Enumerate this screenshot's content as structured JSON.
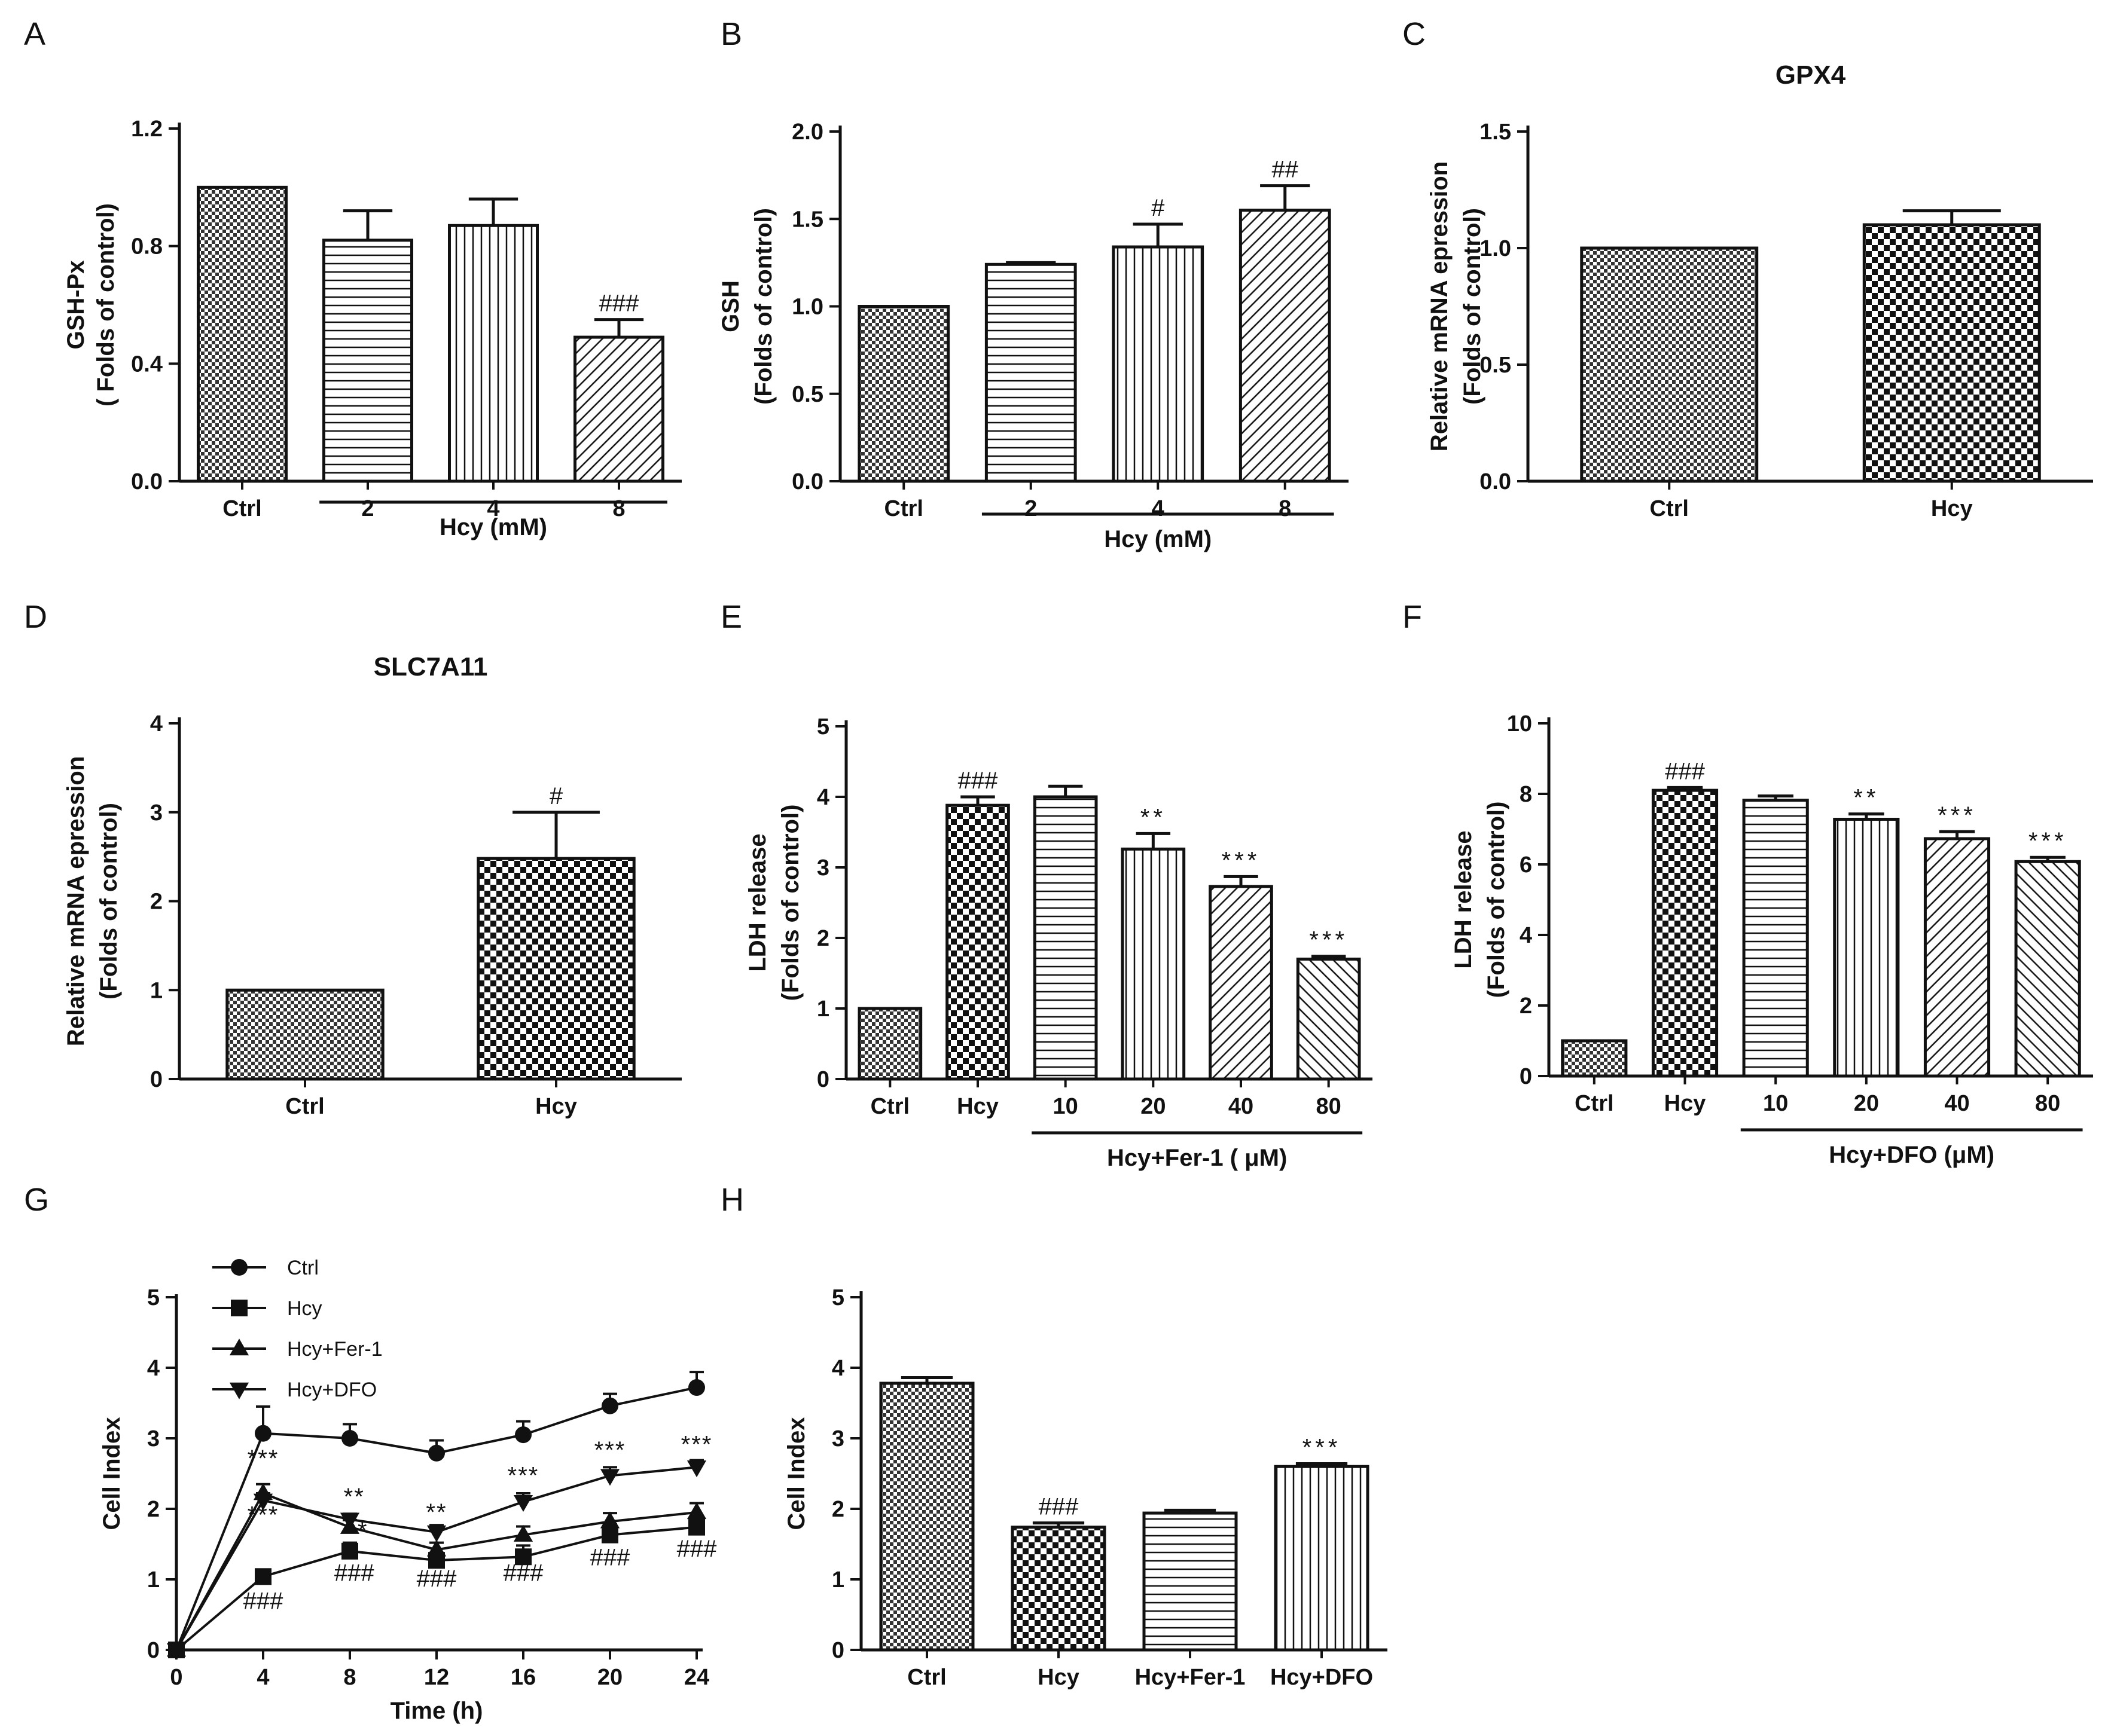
{
  "chart_data": [
    {
      "id": "A",
      "type": "bar",
      "panel_label": "A",
      "title": "",
      "ylabel_lines": [
        "GSH-Px",
        "( Folds of control)"
      ],
      "categories": [
        "Ctrl",
        "2",
        "4",
        "8"
      ],
      "values": [
        1.0,
        0.82,
        0.87,
        0.49
      ],
      "errors": [
        0,
        0.1,
        0.09,
        0.06
      ],
      "annotations": [
        "",
        "",
        "",
        "###"
      ],
      "patterns": [
        "checker",
        "hlines",
        "vlines",
        "diag"
      ],
      "group_label": "Hcy (mM)",
      "group_span": [
        1,
        3
      ],
      "ylim": [
        0,
        1.2
      ],
      "yticks": [
        0.0,
        0.4,
        0.8,
        1.2
      ],
      "ytick_labels": [
        "0.0",
        "0.4",
        "0.8",
        "1.2"
      ]
    },
    {
      "id": "B",
      "type": "bar",
      "panel_label": "B",
      "title": "",
      "ylabel_lines": [
        "GSH",
        "(Folds of control)"
      ],
      "categories": [
        "Ctrl",
        "2",
        "4",
        "8"
      ],
      "values": [
        1.0,
        1.24,
        1.34,
        1.55
      ],
      "errors": [
        0,
        0.01,
        0.13,
        0.14
      ],
      "annotations": [
        "",
        "",
        "#",
        "##"
      ],
      "patterns": [
        "checker",
        "hlines",
        "vlines",
        "diag"
      ],
      "group_label": "Hcy (mM)",
      "group_span": [
        1,
        3
      ],
      "ylim": [
        0,
        2.0
      ],
      "yticks": [
        0.0,
        0.5,
        1.0,
        1.5,
        2.0
      ],
      "ytick_labels": [
        "0.0",
        "0.5",
        "1.0",
        "1.5",
        "2.0"
      ]
    },
    {
      "id": "C",
      "type": "bar",
      "panel_label": "C",
      "title": "GPX4",
      "ylabel_lines": [
        "Relative mRNA epression",
        "(Folds of control)"
      ],
      "categories": [
        "Ctrl",
        "Hcy"
      ],
      "values": [
        1.0,
        1.1
      ],
      "errors": [
        0,
        0.06
      ],
      "annotations": [
        "",
        ""
      ],
      "patterns": [
        "checker",
        "checkerLarge"
      ],
      "ylim": [
        0,
        1.5
      ],
      "yticks": [
        0.0,
        0.5,
        1.0,
        1.5
      ],
      "ytick_labels": [
        "0.0",
        "0.5",
        "1.0",
        "1.5"
      ]
    },
    {
      "id": "D",
      "type": "bar",
      "panel_label": "D",
      "title": "SLC7A11",
      "ylabel_lines": [
        "Relative mRNA epression",
        "(Folds of control)"
      ],
      "categories": [
        "Ctrl",
        "Hcy"
      ],
      "values": [
        1.0,
        2.48
      ],
      "errors": [
        0,
        0.52
      ],
      "annotations": [
        "",
        "#"
      ],
      "patterns": [
        "checker",
        "checkerLarge"
      ],
      "ylim": [
        0,
        4
      ],
      "yticks": [
        0,
        1,
        2,
        3,
        4
      ],
      "ytick_labels": [
        "0",
        "1",
        "2",
        "3",
        "4"
      ]
    },
    {
      "id": "E",
      "type": "bar",
      "panel_label": "E",
      "title": "",
      "ylabel_lines": [
        "LDH release",
        "(Folds of control)"
      ],
      "categories": [
        "Ctrl",
        "Hcy",
        "10",
        "20",
        "40",
        "80"
      ],
      "values": [
        1.0,
        3.88,
        4.0,
        3.26,
        2.73,
        1.7
      ],
      "errors": [
        0,
        0.12,
        0.15,
        0.22,
        0.14,
        0.04
      ],
      "annotations": [
        "",
        "###",
        "",
        "**",
        "***",
        "***"
      ],
      "patterns": [
        "checker",
        "checkerLarge",
        "hlines",
        "vlines",
        "diag",
        "diagrev"
      ],
      "group_label": "Hcy+Fer-1 ( μM)",
      "group_span": [
        2,
        5
      ],
      "ylim": [
        0,
        5
      ],
      "yticks": [
        0,
        1,
        2,
        3,
        4,
        5
      ],
      "ytick_labels": [
        "0",
        "1",
        "2",
        "3",
        "4",
        "5"
      ]
    },
    {
      "id": "F",
      "type": "bar",
      "panel_label": "F",
      "title": "",
      "ylabel_lines": [
        "LDH release",
        "(Folds of control)"
      ],
      "categories": [
        "Ctrl",
        "Hcy",
        "10",
        "20",
        "40",
        "80"
      ],
      "values": [
        1.0,
        8.1,
        7.82,
        7.28,
        6.73,
        6.08
      ],
      "errors": [
        0,
        0.08,
        0.12,
        0.15,
        0.2,
        0.12
      ],
      "annotations": [
        "",
        "###",
        "",
        "**",
        "***",
        "***"
      ],
      "patterns": [
        "checker",
        "checkerLarge",
        "hlines",
        "vlines",
        "diag",
        "diagrev"
      ],
      "group_label": "Hcy+DFO  (μM)",
      "group_span": [
        2,
        5
      ],
      "ylim": [
        0,
        10
      ],
      "yticks": [
        0,
        2,
        4,
        6,
        8,
        10
      ],
      "ytick_labels": [
        "0",
        "2",
        "4",
        "6",
        "8",
        "10"
      ]
    },
    {
      "id": "G",
      "type": "line",
      "panel_label": "G",
      "title": "",
      "xlabel": "Time (h)",
      "ylabel": "Cell Index",
      "x": [
        0,
        4,
        8,
        12,
        16,
        20,
        24
      ],
      "xlim": [
        0,
        24
      ],
      "xticks": [
        0,
        4,
        8,
        12,
        16,
        20,
        24
      ],
      "xtick_labels": [
        "0",
        "4",
        "8",
        "12",
        "16",
        "20",
        "24"
      ],
      "ylim": [
        0,
        5
      ],
      "yticks": [
        0,
        1,
        2,
        3,
        4,
        5
      ],
      "ytick_labels": [
        "0",
        "1",
        "2",
        "3",
        "4",
        "5"
      ],
      "series": [
        {
          "name": "Ctrl",
          "marker": "circle",
          "values": [
            0,
            3.07,
            3.0,
            2.79,
            3.05,
            3.46,
            3.72
          ],
          "errors": [
            0,
            0.38,
            0.2,
            0.18,
            0.19,
            0.17,
            0.22
          ]
        },
        {
          "name": "Hcy",
          "marker": "square",
          "values": [
            0,
            1.04,
            1.4,
            1.27,
            1.32,
            1.63,
            1.74
          ],
          "errors": [
            0,
            0.05,
            0.12,
            0.1,
            0.16,
            0.15,
            0.15
          ]
        },
        {
          "name": "Hcy+Fer-1",
          "marker": "triangle",
          "values": [
            0,
            2.22,
            1.74,
            1.42,
            1.63,
            1.82,
            1.95
          ],
          "errors": [
            0,
            0.13,
            0.1,
            0.1,
            0.12,
            0.12,
            0.13
          ]
        },
        {
          "name": "Hcy+DFO",
          "marker": "triangle-down",
          "values": [
            0,
            2.12,
            1.85,
            1.67,
            2.1,
            2.47,
            2.59
          ],
          "errors": [
            0,
            0.1,
            0.08,
            0.1,
            0.12,
            0.12,
            0.1
          ]
        }
      ],
      "annotations": [
        {
          "text": "***",
          "x": 4,
          "y": 2.6
        },
        {
          "text": "***",
          "x": 4,
          "y": 1.8
        },
        {
          "text": "###",
          "x": 4,
          "y": 0.58
        },
        {
          "text": "**",
          "x": 8.2,
          "y": 2.06
        },
        {
          "text": "*",
          "x": 8.6,
          "y": 1.58
        },
        {
          "text": "###",
          "x": 8.2,
          "y": 0.98
        },
        {
          "text": "**",
          "x": 12,
          "y": 1.84
        },
        {
          "text": "###",
          "x": 12,
          "y": 0.9
        },
        {
          "text": "***",
          "x": 16,
          "y": 2.36
        },
        {
          "text": "###",
          "x": 16,
          "y": 0.98
        },
        {
          "text": "***",
          "x": 20,
          "y": 2.72
        },
        {
          "text": "###",
          "x": 20,
          "y": 1.2
        },
        {
          "text": "***",
          "x": 24,
          "y": 2.8
        },
        {
          "text": "###",
          "x": 24,
          "y": 1.32
        }
      ]
    },
    {
      "id": "H",
      "type": "bar",
      "panel_label": "H",
      "title": "",
      "ylabel_lines": [
        "Cell Index"
      ],
      "categories": [
        "Ctrl",
        "Hcy",
        "Hcy+Fer-1",
        "Hcy+DFO"
      ],
      "values": [
        3.78,
        1.74,
        1.94,
        2.6
      ],
      "errors": [
        0.08,
        0.06,
        0.04,
        0.04
      ],
      "annotations": [
        "",
        "###",
        "",
        "***"
      ],
      "patterns": [
        "checker",
        "checkerLarge",
        "hlines",
        "vlines"
      ],
      "ylim": [
        0,
        5
      ],
      "yticks": [
        0,
        1,
        2,
        3,
        4,
        5
      ],
      "ytick_labels": [
        "0",
        "1",
        "2",
        "3",
        "4",
        "5"
      ]
    }
  ]
}
